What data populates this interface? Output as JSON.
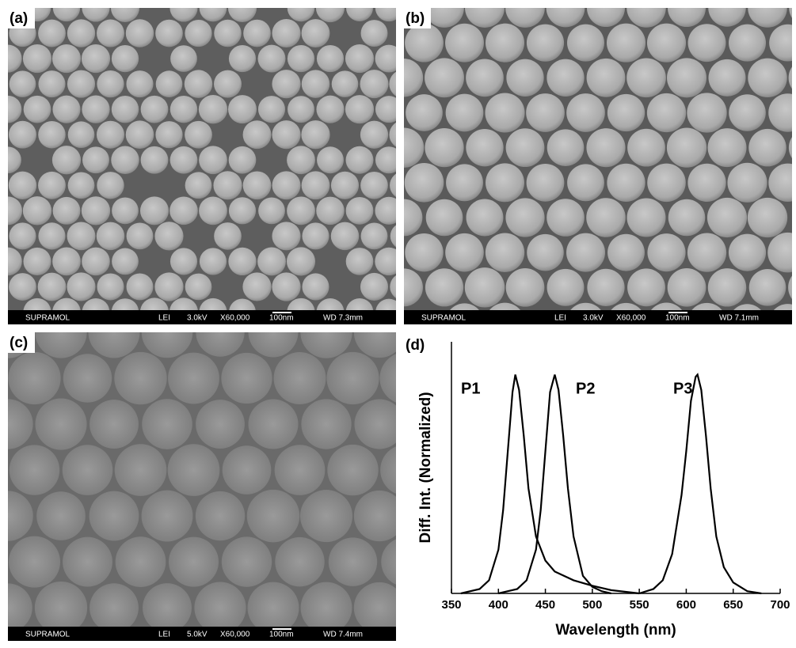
{
  "panels": [
    {
      "label": "(a)",
      "info": [
        "SUPRAMOL",
        "LEI",
        "3.0kV",
        "X60,000",
        "100nm",
        "WD 7.3mm"
      ]
    },
    {
      "label": "(b)",
      "info": [
        "SUPRAMOL",
        "LEI",
        "3.0kV",
        "X60,000",
        "100nm",
        "WD 7.1mm"
      ]
    },
    {
      "label": "(c)",
      "info": [
        "SUPRAMOL",
        "LEI",
        "5.0kV",
        "X60,000",
        "100nm",
        "WD 7.4mm"
      ]
    }
  ],
  "chart_data": {
    "type": "line",
    "panel_label": "(d)",
    "x_label": "Wavelength (nm)",
    "y_label": "Diff. Int. (Normalized)",
    "xlim": [
      350,
      700
    ],
    "xticks": [
      350,
      400,
      450,
      500,
      550,
      600,
      650,
      700
    ],
    "ylim": [
      0,
      1.15
    ],
    "color": "#000000",
    "series": [
      {
        "name": "P1",
        "x": [
          360,
          380,
          390,
          400,
          405,
          410,
          415,
          418,
          422,
          427,
          432,
          440,
          450,
          460,
          480,
          500,
          520,
          540,
          550
        ],
        "values": [
          0,
          0.02,
          0.06,
          0.2,
          0.38,
          0.65,
          0.92,
          1.0,
          0.93,
          0.72,
          0.48,
          0.26,
          0.15,
          0.1,
          0.06,
          0.035,
          0.015,
          0.005,
          0
        ]
      },
      {
        "name": "P2",
        "x": [
          400,
          420,
          430,
          440,
          445,
          450,
          455,
          460,
          464,
          469,
          474,
          480,
          490,
          500,
          510,
          520
        ],
        "values": [
          0,
          0.02,
          0.06,
          0.2,
          0.38,
          0.65,
          0.92,
          1.0,
          0.93,
          0.72,
          0.48,
          0.26,
          0.08,
          0.03,
          0.01,
          0
        ]
      },
      {
        "name": "P3",
        "x": [
          550,
          565,
          575,
          585,
          595,
          600,
          605,
          610,
          612,
          616,
          621,
          626,
          632,
          640,
          650,
          665,
          680
        ],
        "values": [
          0,
          0.02,
          0.06,
          0.18,
          0.45,
          0.65,
          0.88,
          0.99,
          1.0,
          0.93,
          0.72,
          0.48,
          0.26,
          0.12,
          0.05,
          0.01,
          0
        ]
      }
    ]
  }
}
